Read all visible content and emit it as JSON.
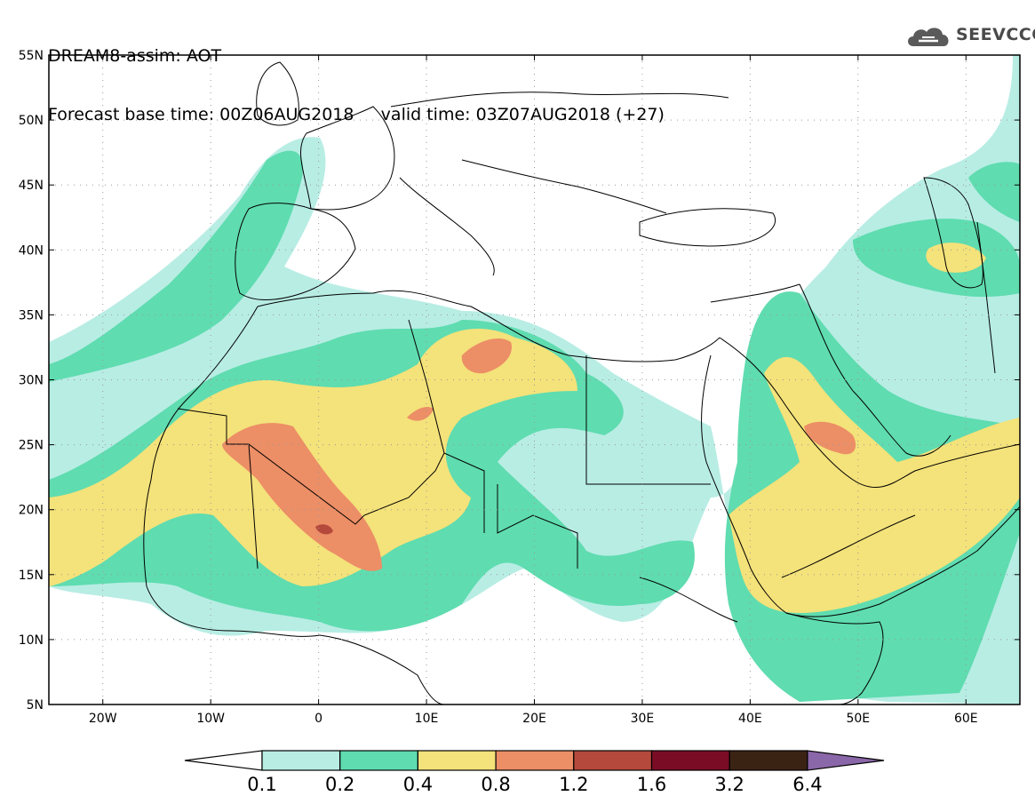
{
  "header": {
    "line1": "DREAM8-assim: AOT",
    "line2": "Forecast base time: 00Z06AUG2018     valid time: 03Z07AUG2018 (+27)"
  },
  "logo": {
    "text": "SEEVCCC",
    "icon": "cloud-logo-icon"
  },
  "map": {
    "lon_range": [
      -25,
      65
    ],
    "lat_range": [
      5,
      55
    ],
    "lat_labels": [
      "55N",
      "50N",
      "45N",
      "40N",
      "35N",
      "30N",
      "25N",
      "20N",
      "15N",
      "10N",
      "5N"
    ],
    "lat_values": [
      55,
      50,
      45,
      40,
      35,
      30,
      25,
      20,
      15,
      10,
      5
    ],
    "lon_labels": [
      "20W",
      "10W",
      "0",
      "10E",
      "20E",
      "30E",
      "40E",
      "50E",
      "60E"
    ],
    "lon_values": [
      -20,
      -10,
      0,
      10,
      20,
      30,
      40,
      50,
      60
    ],
    "grid": "dotted"
  },
  "colorbar": {
    "labels": [
      "0.1",
      "0.2",
      "0.4",
      "0.8",
      "1.2",
      "1.6",
      "3.2",
      "6.4"
    ],
    "colors": [
      "#b8ede4",
      "#5fdcb0",
      "#f4e27a",
      "#ec8e66",
      "#b54a3c",
      "#7a0c26",
      "#3b2314"
    ],
    "under_color": "#ffffff",
    "over_color": "#8a67a8"
  },
  "colors": {
    "l1": "#b8ede4",
    "l2": "#5fdcb0",
    "l3": "#f4e27a",
    "l4": "#ec8e66",
    "l5": "#b54a3c",
    "l6": "#7a0c26"
  }
}
